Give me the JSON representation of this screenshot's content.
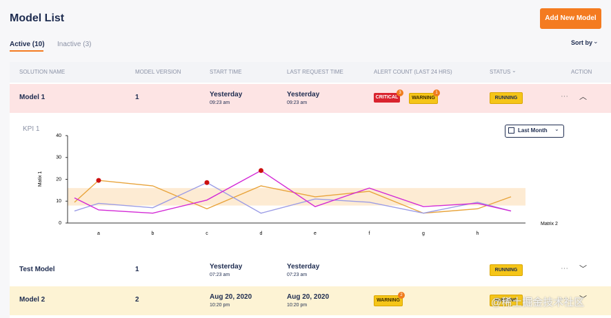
{
  "header": {
    "title": "Model List",
    "add_button": "Add New Model"
  },
  "tabs": [
    "Active (10)",
    "Inactive (3)"
  ],
  "sort_label": "Sort by",
  "table": {
    "columns": [
      "SOLUTION NAME",
      "MODEL VERSION",
      "START TIME",
      "LAST REQUEST TIME",
      "ALERT COUNT (LAST 24 HRS)",
      "STATUS",
      "ACTION"
    ],
    "rows": [
      {
        "name": "Model 1",
        "version": 1,
        "start": {
          "date": "Yesterday",
          "time": "09:23 am"
        },
        "last_request": {
          "date": "Yesterday",
          "time": "09:23 am"
        },
        "alerts": [
          {
            "label": "CRITICAL",
            "count": 3
          },
          {
            "label": "WARNING",
            "count": 1
          }
        ],
        "status": "RUNNING"
      },
      {
        "name": "Test Model",
        "version": 1,
        "start": {
          "date": "Yesterday",
          "time": "07:23 am"
        },
        "last_request": {
          "date": "Yesterday",
          "time": "07:23 am"
        },
        "alerts": [],
        "status": "RUNNING"
      },
      {
        "name": "Model 2",
        "version": 2,
        "start": {
          "date": "Aug 20, 2020",
          "time": "10:20 pm"
        },
        "last_request": {
          "date": "Aug 20, 2020",
          "time": "10:20 pm"
        },
        "alerts": [
          {
            "label": "WARNING",
            "count": 2
          }
        ],
        "status": "RUNNING"
      }
    ]
  },
  "chart_data": {
    "type": "line",
    "title": "KPI 1",
    "range_selector": "Last Month",
    "y_label": "Matix 1",
    "x_label": "Matrix 2",
    "categories": [
      null,
      "a",
      "b",
      "c",
      "d",
      "e",
      "f",
      "g",
      "h",
      null
    ],
    "ylim": [
      0,
      40
    ],
    "yticks": [
      0,
      10,
      20,
      30,
      40
    ],
    "band": [
      8,
      16
    ],
    "band_color": "#fdebd3",
    "series": [
      {
        "color": "#e8a33a",
        "values": [
          9.5,
          19.5,
          17,
          6.5,
          17,
          12,
          14.5,
          4.5,
          6.5,
          12
        ]
      },
      {
        "color": "#9b9ce6",
        "values": [
          5.5,
          9,
          7,
          18.5,
          4.5,
          11,
          9.5,
          4.5,
          9.5,
          5.5
        ]
      },
      {
        "color": "#d329d6",
        "values": [
          11.5,
          6,
          4.5,
          10.5,
          24,
          7.5,
          16,
          7.5,
          9,
          5.5
        ]
      }
    ],
    "highlights": [
      {
        "series": 0,
        "index": 1
      },
      {
        "series": 1,
        "index": 3
      },
      {
        "series": 2,
        "index": 4
      }
    ],
    "highlight_color": "#cc1010"
  },
  "watermark": "@稀土掘金技术社区"
}
